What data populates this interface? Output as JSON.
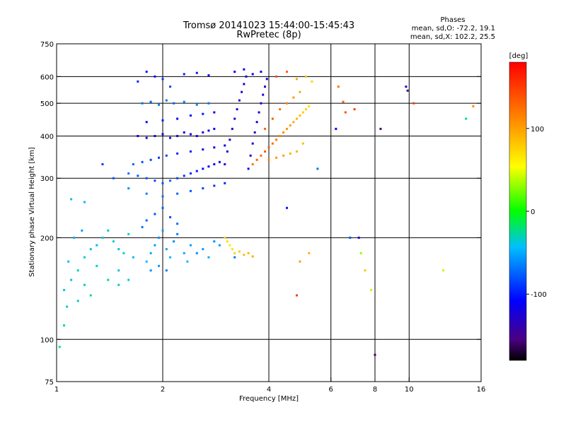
{
  "chart_data": {
    "type": "scatter",
    "title": "Tromsø 20141023 15:44:00-15:45:43",
    "subtitle": "RwPretec (8p)",
    "xlabel": "Frequency [MHz]",
    "ylabel": "Stationary phase Virtual Height [km]",
    "x_scale": "log",
    "y_scale": "log",
    "xlim": [
      1,
      16
    ],
    "ylim": [
      75,
      750
    ],
    "x_ticks": [
      1,
      2,
      4,
      6,
      8,
      10,
      16
    ],
    "y_ticks": [
      75,
      100,
      200,
      300,
      400,
      500,
      600,
      750
    ],
    "x_grid": [
      2,
      4,
      6,
      8,
      10
    ],
    "y_grid": [
      100,
      200,
      300,
      400,
      500,
      600
    ],
    "grid": true,
    "stats": {
      "title": "Phases",
      "line_o": "mean, sd,O: -72.2, 19.1",
      "line_x": "mean, sd,X: 102.2, 25.5"
    },
    "colorbar": {
      "label": "[deg]",
      "min": -180,
      "max": 180,
      "ticks": [
        100,
        0,
        -100
      ]
    },
    "series": [
      {
        "cluster": "low-freq-trace",
        "points": [
          [
            1.02,
            95,
            -20
          ],
          [
            1.05,
            110,
            -25
          ],
          [
            1.07,
            125,
            -30
          ],
          [
            1.05,
            140,
            -35
          ],
          [
            1.1,
            150,
            -40
          ],
          [
            1.15,
            160,
            -30
          ],
          [
            1.2,
            175,
            -35
          ],
          [
            1.25,
            185,
            -40
          ],
          [
            1.08,
            170,
            -45
          ],
          [
            1.12,
            200,
            -50
          ],
          [
            1.18,
            210,
            -55
          ],
          [
            1.3,
            190,
            -45
          ],
          [
            1.35,
            200,
            -40
          ],
          [
            1.4,
            210,
            -30
          ],
          [
            1.45,
            195,
            -35
          ],
          [
            1.5,
            185,
            -40
          ],
          [
            1.55,
            180,
            -35
          ],
          [
            1.6,
            205,
            -30
          ],
          [
            1.65,
            175,
            -45
          ],
          [
            1.5,
            160,
            -40
          ],
          [
            1.3,
            165,
            -35
          ],
          [
            1.2,
            145,
            -30
          ],
          [
            1.15,
            130,
            -35
          ],
          [
            1.25,
            135,
            -25
          ],
          [
            1.4,
            150,
            -25
          ],
          [
            1.5,
            145,
            -30
          ],
          [
            1.6,
            150,
            -35
          ],
          [
            1.1,
            260,
            -40
          ],
          [
            1.2,
            255,
            -45
          ],
          [
            1.35,
            330,
            -90
          ],
          [
            1.45,
            300,
            -80
          ]
        ]
      },
      {
        "cluster": "E-region-spread",
        "points": [
          [
            1.8,
            170,
            -45
          ],
          [
            1.85,
            180,
            -50
          ],
          [
            1.9,
            190,
            -55
          ],
          [
            1.95,
            200,
            -60
          ],
          [
            2.0,
            210,
            -55
          ],
          [
            2.05,
            185,
            -50
          ],
          [
            2.1,
            175,
            -45
          ],
          [
            2.15,
            195,
            -60
          ],
          [
            2.2,
            205,
            -65
          ],
          [
            2.3,
            180,
            -50
          ],
          [
            2.35,
            170,
            -45
          ],
          [
            2.4,
            190,
            -55
          ],
          [
            2.5,
            180,
            -60
          ],
          [
            2.6,
            185,
            -55
          ],
          [
            2.7,
            175,
            -50
          ],
          [
            2.8,
            195,
            -60
          ],
          [
            2.9,
            190,
            -55
          ],
          [
            1.75,
            215,
            -70
          ],
          [
            1.8,
            225,
            -75
          ],
          [
            1.9,
            235,
            -80
          ],
          [
            2.0,
            245,
            -75
          ],
          [
            2.1,
            230,
            -85
          ],
          [
            2.2,
            220,
            -70
          ],
          [
            1.85,
            160,
            -60
          ],
          [
            1.95,
            165,
            -55
          ],
          [
            2.05,
            160,
            -65
          ]
        ]
      },
      {
        "cluster": "F1-o-trace",
        "points": [
          [
            1.6,
            310,
            -70
          ],
          [
            1.7,
            305,
            -75
          ],
          [
            1.8,
            300,
            -80
          ],
          [
            1.9,
            295,
            -85
          ],
          [
            2.0,
            290,
            -80
          ],
          [
            2.1,
            295,
            -75
          ],
          [
            2.2,
            300,
            -85
          ],
          [
            2.3,
            305,
            -90
          ],
          [
            2.4,
            310,
            -95
          ],
          [
            2.5,
            315,
            -100
          ],
          [
            2.6,
            320,
            -105
          ],
          [
            2.7,
            325,
            -110
          ],
          [
            2.8,
            330,
            -115
          ],
          [
            2.9,
            335,
            -120
          ],
          [
            1.65,
            330,
            -75
          ],
          [
            1.75,
            335,
            -80
          ],
          [
            1.85,
            340,
            -85
          ],
          [
            1.95,
            345,
            -90
          ],
          [
            2.05,
            350,
            -85
          ],
          [
            2.2,
            355,
            -95
          ],
          [
            2.4,
            360,
            -100
          ],
          [
            2.6,
            365,
            -105
          ],
          [
            2.8,
            370,
            -110
          ],
          [
            3.0,
            375,
            -115
          ],
          [
            1.6,
            280,
            -60
          ],
          [
            1.8,
            270,
            -65
          ],
          [
            2.0,
            265,
            -70
          ],
          [
            2.2,
            270,
            -75
          ],
          [
            2.4,
            275,
            -80
          ],
          [
            2.6,
            280,
            -85
          ],
          [
            2.8,
            285,
            -90
          ],
          [
            3.0,
            290,
            -95
          ]
        ]
      },
      {
        "cluster": "F2-o-trace",
        "points": [
          [
            1.7,
            400,
            -110
          ],
          [
            1.8,
            395,
            -115
          ],
          [
            1.9,
            400,
            -120
          ],
          [
            2.0,
            405,
            -115
          ],
          [
            2.1,
            395,
            -120
          ],
          [
            2.2,
            400,
            -125
          ],
          [
            2.3,
            410,
            -120
          ],
          [
            2.4,
            405,
            -115
          ],
          [
            2.5,
            400,
            -120
          ],
          [
            2.6,
            410,
            -125
          ],
          [
            2.7,
            415,
            -120
          ],
          [
            2.8,
            420,
            -115
          ],
          [
            1.8,
            440,
            -105
          ],
          [
            2.0,
            445,
            -100
          ],
          [
            2.2,
            450,
            -110
          ],
          [
            2.4,
            460,
            -105
          ],
          [
            2.6,
            465,
            -100
          ],
          [
            2.8,
            470,
            -110
          ],
          [
            1.75,
            500,
            -70
          ],
          [
            1.85,
            505,
            -75
          ],
          [
            1.95,
            495,
            -65
          ],
          [
            2.05,
            510,
            -70
          ],
          [
            2.15,
            500,
            -75
          ],
          [
            2.3,
            505,
            -65
          ],
          [
            2.5,
            495,
            -60
          ],
          [
            2.7,
            500,
            -70
          ],
          [
            1.7,
            580,
            -95
          ],
          [
            1.8,
            620,
            -100
          ],
          [
            1.9,
            600,
            -105
          ],
          [
            2.0,
            590,
            -90
          ],
          [
            2.1,
            560,
            -85
          ],
          [
            2.3,
            610,
            -95
          ],
          [
            2.5,
            615,
            -100
          ],
          [
            2.7,
            605,
            -105
          ]
        ]
      },
      {
        "cluster": "F2-critical-band",
        "points": [
          [
            3.0,
            330,
            -120
          ],
          [
            3.05,
            360,
            -125
          ],
          [
            3.1,
            390,
            -130
          ],
          [
            3.15,
            420,
            -125
          ],
          [
            3.2,
            450,
            -120
          ],
          [
            3.25,
            480,
            -125
          ],
          [
            3.3,
            510,
            -130
          ],
          [
            3.35,
            540,
            -125
          ],
          [
            3.4,
            570,
            -120
          ],
          [
            3.45,
            600,
            -125
          ],
          [
            3.5,
            320,
            -115
          ],
          [
            3.55,
            350,
            -120
          ],
          [
            3.6,
            380,
            -125
          ],
          [
            3.65,
            410,
            -130
          ],
          [
            3.7,
            440,
            -125
          ],
          [
            3.75,
            470,
            -120
          ],
          [
            3.8,
            500,
            -125
          ],
          [
            3.85,
            530,
            -130
          ],
          [
            3.9,
            560,
            -125
          ],
          [
            3.95,
            590,
            -120
          ],
          [
            3.2,
            620,
            -110
          ],
          [
            3.4,
            630,
            -115
          ],
          [
            3.6,
            610,
            -120
          ],
          [
            3.8,
            620,
            -115
          ]
        ]
      },
      {
        "cluster": "x-trace",
        "points": [
          [
            3.6,
            330,
            120
          ],
          [
            3.7,
            340,
            130
          ],
          [
            3.8,
            350,
            125
          ],
          [
            3.9,
            360,
            135
          ],
          [
            4.0,
            370,
            130
          ],
          [
            4.1,
            380,
            125
          ],
          [
            4.2,
            390,
            120
          ],
          [
            4.3,
            400,
            115
          ],
          [
            4.4,
            410,
            110
          ],
          [
            4.5,
            420,
            105
          ],
          [
            4.6,
            430,
            100
          ],
          [
            4.7,
            440,
            95
          ],
          [
            4.8,
            450,
            90
          ],
          [
            4.9,
            460,
            85
          ],
          [
            5.0,
            470,
            80
          ],
          [
            5.1,
            480,
            75
          ],
          [
            5.2,
            490,
            70
          ],
          [
            4.0,
            340,
            110
          ],
          [
            4.2,
            345,
            105
          ],
          [
            4.4,
            350,
            100
          ],
          [
            4.6,
            355,
            95
          ],
          [
            4.8,
            360,
            90
          ],
          [
            5.0,
            380,
            85
          ],
          [
            3.9,
            420,
            130
          ],
          [
            4.1,
            450,
            135
          ],
          [
            4.3,
            480,
            125
          ],
          [
            4.5,
            500,
            115
          ],
          [
            4.7,
            520,
            105
          ],
          [
            4.9,
            540,
            95
          ],
          [
            4.2,
            600,
            140
          ],
          [
            4.5,
            620,
            130
          ],
          [
            4.8,
            590,
            95
          ],
          [
            5.1,
            600,
            85
          ],
          [
            5.3,
            580,
            75
          ]
        ]
      },
      {
        "cluster": "sparse-e-layer",
        "points": [
          [
            3.0,
            200,
            75
          ],
          [
            3.05,
            195,
            70
          ],
          [
            3.1,
            190,
            65
          ],
          [
            3.15,
            185,
            70
          ],
          [
            3.2,
            180,
            75
          ],
          [
            3.3,
            182,
            80
          ],
          [
            3.4,
            178,
            85
          ],
          [
            3.5,
            180,
            90
          ],
          [
            3.6,
            176,
            95
          ],
          [
            3.2,
            175,
            -70
          ]
        ]
      },
      {
        "cluster": "isolated",
        "points": [
          [
            4.5,
            245,
            -100
          ],
          [
            4.8,
            135,
            150
          ],
          [
            5.5,
            320,
            -70
          ],
          [
            6.2,
            420,
            -110
          ],
          [
            6.3,
            560,
            120
          ],
          [
            6.5,
            505,
            130
          ],
          [
            6.6,
            470,
            140
          ],
          [
            6.8,
            200,
            -80
          ],
          [
            7.0,
            480,
            150
          ],
          [
            7.2,
            200,
            -120
          ],
          [
            7.5,
            160,
            80
          ],
          [
            7.8,
            140,
            40
          ],
          [
            8.0,
            90,
            -160
          ],
          [
            8.3,
            420,
            -160
          ],
          [
            9.8,
            560,
            -120
          ],
          [
            9.9,
            545,
            -150
          ],
          [
            10.3,
            500,
            150
          ],
          [
            12.5,
            160,
            40
          ],
          [
            14.5,
            450,
            -20
          ],
          [
            15.2,
            490,
            110
          ],
          [
            4.9,
            170,
            100
          ],
          [
            5.2,
            180,
            90
          ],
          [
            7.3,
            180,
            30
          ]
        ]
      }
    ]
  }
}
